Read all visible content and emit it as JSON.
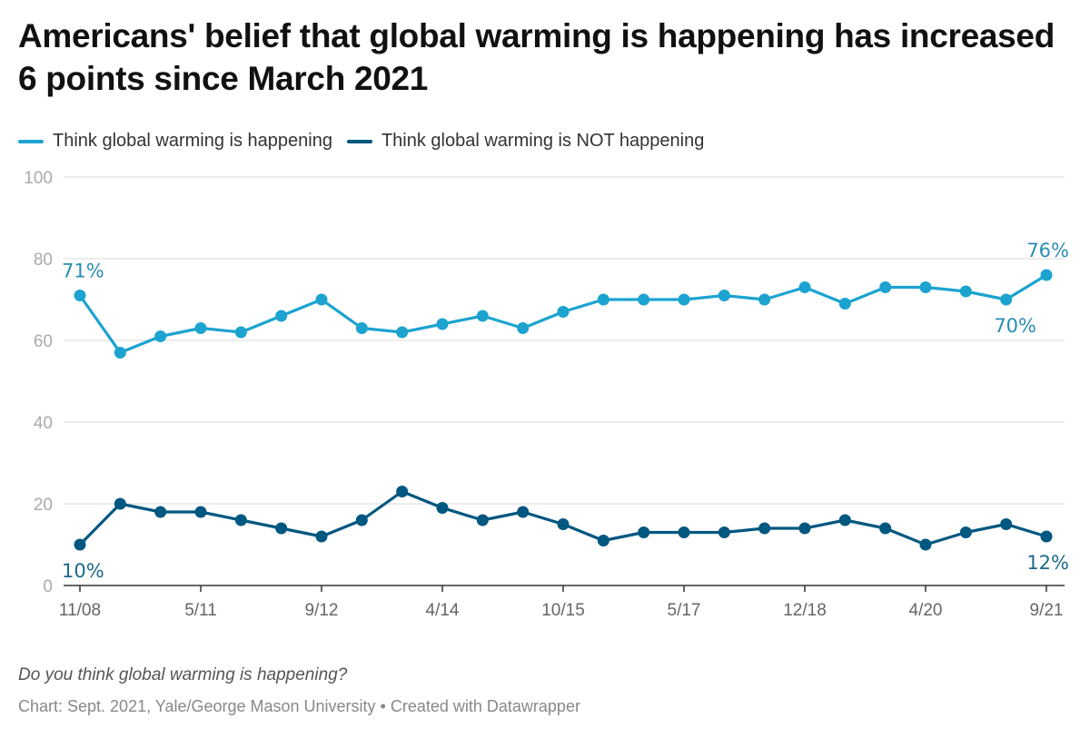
{
  "title": "Americans' belief that global warming is happening has increased 6 points since March 2021",
  "legend": [
    {
      "label": "Think global warming is happening",
      "color": "#1ca3d0"
    },
    {
      "label": "Think global warming is NOT happening",
      "color": "#00577f"
    }
  ],
  "description": "Do you think global warming is happening?",
  "footer": "Chart: Sept. 2021, Yale/George Mason University • Created with Datawrapper",
  "chart_data": {
    "type": "line",
    "title": "Americans' belief that global warming is happening has increased 6 points since March 2021",
    "xlabel": "",
    "ylabel": "",
    "ylim": [
      0,
      100
    ],
    "yticks": [
      0,
      20,
      40,
      60,
      80,
      100
    ],
    "grid": true,
    "legend_position": "top-left",
    "x_tick_labels": [
      {
        "index": 0,
        "label": "11/08"
      },
      {
        "index": 3,
        "label": "5/11"
      },
      {
        "index": 6,
        "label": "9/12"
      },
      {
        "index": 9,
        "label": "4/14"
      },
      {
        "index": 12,
        "label": "10/15"
      },
      {
        "index": 15,
        "label": "5/17"
      },
      {
        "index": 18,
        "label": "12/18"
      },
      {
        "index": 21,
        "label": "4/20"
      },
      {
        "index": 24,
        "label": "9/21"
      }
    ],
    "n_points": 25,
    "series": [
      {
        "name": "Think global warming is happening",
        "color": "#1ca3d0",
        "label_color": "#2a8cb3",
        "values": [
          71,
          57,
          61,
          63,
          62,
          66,
          70,
          63,
          62,
          64,
          66,
          63,
          67,
          70,
          70,
          70,
          71,
          70,
          73,
          69,
          73,
          73,
          72,
          70,
          76
        ],
        "annotations": [
          {
            "index": 0,
            "text": "71%",
            "position": "above"
          },
          {
            "index": 23,
            "text": "70%",
            "position": "below"
          },
          {
            "index": 24,
            "text": "76%",
            "position": "above"
          }
        ]
      },
      {
        "name": "Think global warming is NOT happening",
        "color": "#00577f",
        "label_color": "#1d6a8c",
        "values": [
          10,
          20,
          18,
          18,
          16,
          14,
          12,
          16,
          23,
          19,
          16,
          18,
          15,
          11,
          13,
          13,
          13,
          14,
          14,
          16,
          14,
          10,
          13,
          15,
          12
        ],
        "annotations": [
          {
            "index": 0,
            "text": "10%",
            "position": "below"
          },
          {
            "index": 24,
            "text": "12%",
            "position": "below"
          }
        ]
      }
    ]
  }
}
